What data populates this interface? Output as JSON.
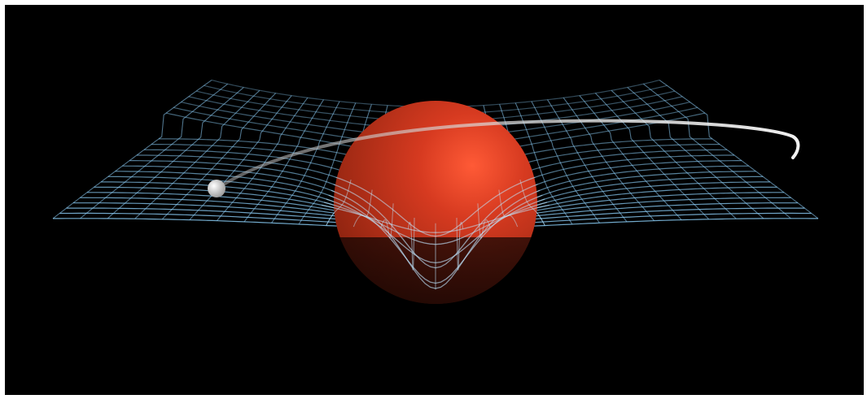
{
  "scene": {
    "background_color": "#000000",
    "frame_color": "#ffffff",
    "grid_color": "#8fd4ff",
    "grid_deep_color": "#bfe8ff",
    "sphere_color": "#c8321e",
    "sphere_highlight_color": "#ff5533",
    "orbit_color": "#d9d9d9",
    "planet_color": "#f2f2f2",
    "elements": [
      "curved-spacetime-grid",
      "massive-sphere",
      "orbit-trail",
      "orbiting-planet"
    ]
  }
}
